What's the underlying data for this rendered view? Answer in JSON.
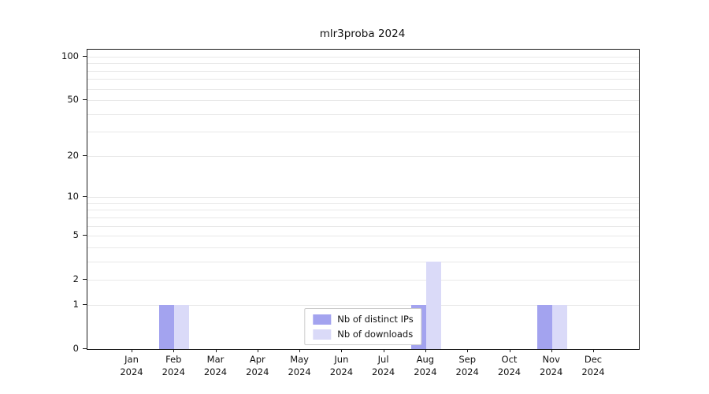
{
  "chart_data": {
    "type": "bar",
    "title": "mlr3proba 2024",
    "categories": [
      "Jan",
      "Feb",
      "Mar",
      "Apr",
      "May",
      "Jun",
      "Jul",
      "Aug",
      "Sep",
      "Oct",
      "Nov",
      "Dec"
    ],
    "year_label": "2024",
    "series": [
      {
        "name": "Nb of distinct IPs",
        "color": "#a3a3ef",
        "values": [
          0,
          1,
          0,
          0,
          0,
          0,
          0,
          1,
          0,
          0,
          1,
          0
        ]
      },
      {
        "name": "Nb of downloads",
        "color": "#dadaf8",
        "values": [
          0,
          1,
          0,
          0,
          0,
          0,
          0,
          3,
          0,
          0,
          1,
          0
        ]
      }
    ],
    "yticks": [
      0,
      1,
      2,
      5,
      10,
      20,
      50,
      100
    ],
    "minor_gridlines": [
      1,
      2,
      3,
      4,
      5,
      6,
      7,
      8,
      9,
      10,
      20,
      30,
      40,
      50,
      60,
      70,
      80,
      90,
      100
    ],
    "scale": "log1p",
    "ylim": [
      0,
      112
    ],
    "grid": true,
    "legend_position": "bottom-center"
  }
}
